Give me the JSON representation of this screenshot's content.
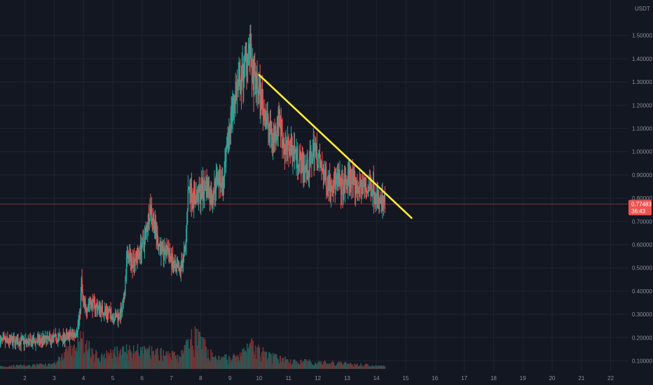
{
  "chart_data": {
    "type": "candlestick",
    "currency": "USDT",
    "y_ticks": [
      0.1,
      0.2,
      0.3,
      0.4,
      0.5,
      0.6,
      0.7,
      0.8,
      0.9,
      1.0,
      1.1,
      1.2,
      1.3,
      1.4,
      1.5
    ],
    "y_tick_labels": [
      "0.10000",
      "0.20000",
      "0.30000",
      "0.40000",
      "0.50000",
      "0.60000",
      "0.70000",
      "0.80000",
      "0.90000",
      "1.00000",
      "1.10000",
      "1.20000",
      "1.30000",
      "1.40000",
      "1.50000"
    ],
    "ylim": [
      0.05,
      1.6
    ],
    "x_ticks": [
      2,
      3,
      4,
      5,
      6,
      7,
      8,
      9,
      10,
      11,
      12,
      13,
      14,
      15,
      16,
      17,
      18,
      19,
      20,
      21,
      22
    ],
    "x_tick_labels": [
      "2",
      "3",
      "4",
      "5",
      "6",
      "7",
      "8",
      "9",
      "10",
      "11",
      "12",
      "13",
      "14",
      "15",
      "16",
      "17",
      "18",
      "19",
      "20",
      "21",
      "22"
    ],
    "xlim": [
      1.15,
      22.2
    ],
    "grid": true,
    "last_price": 0.77483,
    "last_price_label": "0.77483",
    "countdown_label": "36:43",
    "price_path": [
      [
        1.15,
        0.185
      ],
      [
        2.0,
        0.183
      ],
      [
        2.2,
        0.178
      ],
      [
        2.4,
        0.185
      ],
      [
        2.6,
        0.19
      ],
      [
        2.9,
        0.192
      ],
      [
        3.1,
        0.2
      ],
      [
        3.3,
        0.198
      ],
      [
        3.5,
        0.205
      ],
      [
        3.7,
        0.215
      ],
      [
        3.8,
        0.235
      ],
      [
        3.9,
        0.3
      ],
      [
        3.95,
        0.44
      ],
      [
        4.0,
        0.35
      ],
      [
        4.1,
        0.32
      ],
      [
        4.2,
        0.35
      ],
      [
        4.3,
        0.345
      ],
      [
        4.5,
        0.33
      ],
      [
        4.7,
        0.315
      ],
      [
        4.9,
        0.305
      ],
      [
        5.1,
        0.29
      ],
      [
        5.3,
        0.3
      ],
      [
        5.4,
        0.35
      ],
      [
        5.5,
        0.55
      ],
      [
        5.7,
        0.53
      ],
      [
        5.9,
        0.56
      ],
      [
        6.1,
        0.62
      ],
      [
        6.3,
        0.76
      ],
      [
        6.5,
        0.65
      ],
      [
        6.6,
        0.6
      ],
      [
        6.75,
        0.56
      ],
      [
        6.9,
        0.58
      ],
      [
        7.1,
        0.5
      ],
      [
        7.3,
        0.48
      ],
      [
        7.5,
        0.58
      ],
      [
        7.6,
        0.85
      ],
      [
        7.8,
        0.8
      ],
      [
        8.0,
        0.82
      ],
      [
        8.2,
        0.86
      ],
      [
        8.4,
        0.8
      ],
      [
        8.6,
        0.9
      ],
      [
        8.8,
        0.85
      ],
      [
        9.0,
        1.1
      ],
      [
        9.2,
        1.25
      ],
      [
        9.4,
        1.3
      ],
      [
        9.6,
        1.42
      ],
      [
        9.7,
        1.45
      ],
      [
        9.8,
        1.3
      ],
      [
        9.95,
        1.28
      ],
      [
        10.1,
        1.22
      ],
      [
        10.3,
        1.12
      ],
      [
        10.5,
        1.05
      ],
      [
        10.7,
        1.15
      ],
      [
        10.9,
        1.0
      ],
      [
        11.1,
        1.03
      ],
      [
        11.3,
        0.98
      ],
      [
        11.5,
        0.94
      ],
      [
        11.7,
        0.92
      ],
      [
        11.9,
        1.02
      ],
      [
        12.1,
        0.94
      ],
      [
        12.3,
        0.88
      ],
      [
        12.5,
        0.86
      ],
      [
        12.7,
        0.87
      ],
      [
        12.9,
        0.84
      ],
      [
        13.1,
        0.9
      ],
      [
        13.3,
        0.84
      ],
      [
        13.5,
        0.85
      ],
      [
        13.7,
        0.84
      ],
      [
        13.9,
        0.85
      ],
      [
        14.1,
        0.78
      ],
      [
        14.3,
        0.775
      ]
    ],
    "volume_profile": [
      [
        1.2,
        0.08
      ],
      [
        2.0,
        0.1
      ],
      [
        3.0,
        0.15
      ],
      [
        3.9,
        0.9
      ],
      [
        4.5,
        0.35
      ],
      [
        5.5,
        0.6
      ],
      [
        6.3,
        0.5
      ],
      [
        7.3,
        0.4
      ],
      [
        7.8,
        1.0
      ],
      [
        8.5,
        0.3
      ],
      [
        9.3,
        0.35
      ],
      [
        9.7,
        0.7
      ],
      [
        10.3,
        0.4
      ],
      [
        11.0,
        0.25
      ],
      [
        12.0,
        0.2
      ],
      [
        13.0,
        0.15
      ],
      [
        14.0,
        0.1
      ],
      [
        14.3,
        0.08
      ]
    ],
    "trendline": {
      "x1": 10.0,
      "y1": 1.33,
      "x2": 15.2,
      "y2": 0.715,
      "color": "#ffeb3b"
    },
    "colors": {
      "up": "#26a69a",
      "down": "#ef5350",
      "volume_up": "#1f5f5a",
      "volume_down": "#7a2e30",
      "background": "#131722",
      "price_line": "#ef5350",
      "price_tag": "#ef5350"
    }
  }
}
